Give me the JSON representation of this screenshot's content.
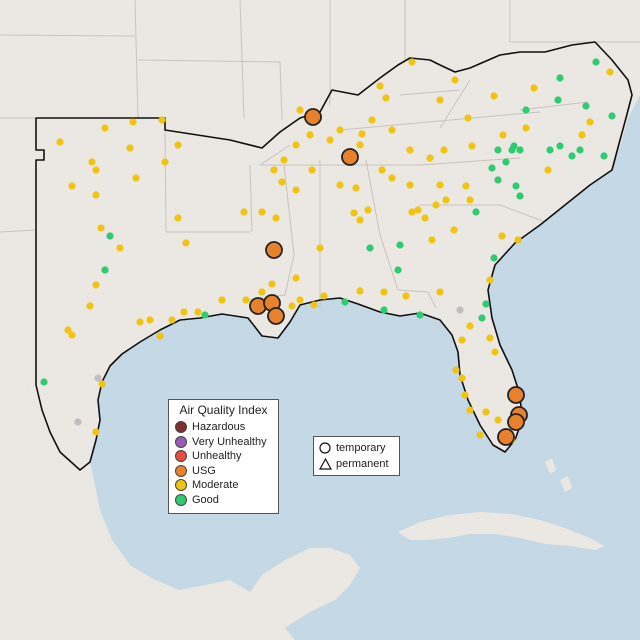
{
  "legend": {
    "title": "Air Quality Index",
    "categories": [
      {
        "label": "Hazardous",
        "color": "#7e2e2e"
      },
      {
        "label": "Very Unhealthy",
        "color": "#9b59b6"
      },
      {
        "label": "Unhealthy",
        "color": "#e74c3c"
      },
      {
        "label": "USG",
        "color": "#e8812c"
      },
      {
        "label": "Moderate",
        "color": "#f1c40f"
      },
      {
        "label": "Good",
        "color": "#2ecc71"
      }
    ]
  },
  "monitor_types": {
    "temporary": "temporary",
    "permanent": "permanent"
  },
  "colors": {
    "water": "#c5d8e6",
    "land": "#ebe7e2",
    "no_data": "#bfbfbf"
  }
}
